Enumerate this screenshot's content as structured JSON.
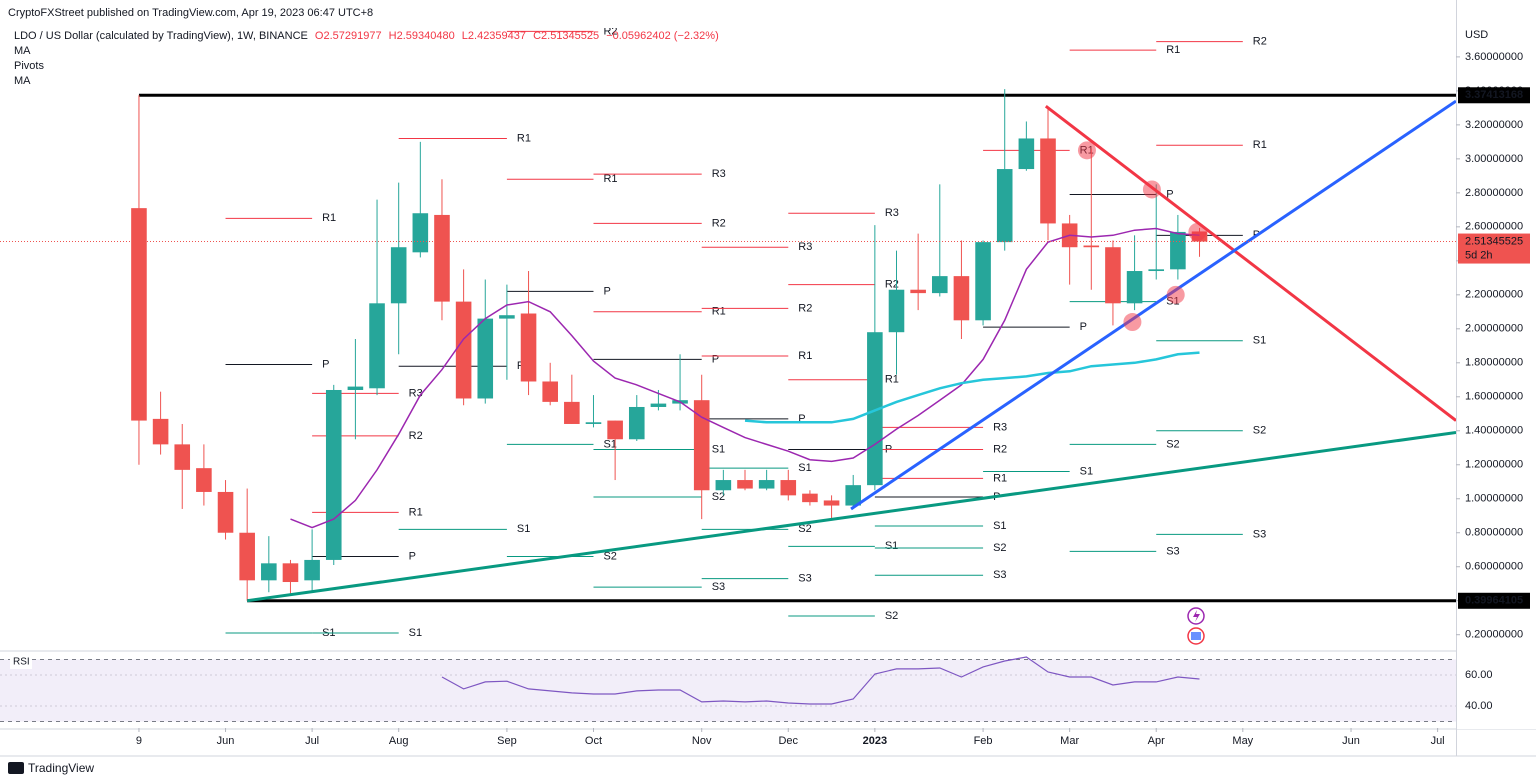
{
  "chart_data": {
    "type": "candlestick",
    "published": "CryptoFXStreet published on TradingView.com, Apr 19, 2023 06:47 UTC+8",
    "symbol": "LDO / US Dollar (calculated by TradingView), 1W, BINANCE",
    "legend_values": [
      "O2.57291977",
      "H2.59340480",
      "L2.42359437",
      "C2.51345525",
      "−0.05962402 (−2.32%)"
    ],
    "indicators": [
      "MA",
      "Pivots",
      "MA"
    ],
    "currency": "USD",
    "up_color": "#26a69a",
    "down_color": "#ef5350",
    "open": [
      2.71,
      1.47,
      1.32,
      1.18,
      1.04,
      0.8,
      0.52,
      0.62,
      0.52,
      0.64,
      1.64,
      1.65,
      2.15,
      2.45,
      2.67,
      2.16,
      1.59,
      2.06,
      2.09,
      1.69,
      1.57,
      1.44,
      1.46,
      1.35,
      1.54,
      1.56,
      1.58,
      1.05,
      1.11,
      1.06,
      1.11,
      1.03,
      0.99,
      0.96,
      1.08,
      1.98,
      2.23,
      2.21,
      2.31,
      2.05,
      2.51,
      2.94,
      3.12,
      2.62,
      2.49,
      2.48,
      2.15,
      2.34,
      2.35,
      2.57291977
    ],
    "high": [
      3.37413168,
      1.63,
      1.44,
      1.32,
      1.11,
      1.06,
      0.78,
      0.64,
      0.82,
      1.67,
      1.94,
      2.76,
      2.86,
      3.1,
      2.88,
      2.35,
      2.29,
      2.26,
      2.34,
      1.8,
      1.73,
      1.61,
      1.46,
      1.61,
      1.64,
      1.85,
      1.73,
      1.17,
      1.17,
      1.17,
      1.17,
      1.05,
      1.02,
      1.14,
      2.61,
      2.46,
      2.56,
      2.85,
      2.52,
      2.52,
      3.41,
      3.22,
      3.3,
      2.67,
      3.06,
      2.52,
      2.55,
      2.85,
      2.67,
      2.5934048
    ],
    "low": [
      1.2,
      1.26,
      0.94,
      0.96,
      0.76,
      0.39964105,
      0.45,
      0.44,
      0.46,
      0.61,
      1.35,
      1.61,
      1.85,
      2.42,
      2.05,
      1.55,
      1.56,
      1.7,
      1.61,
      1.55,
      1.44,
      1.42,
      1.11,
      1.34,
      1.52,
      1.52,
      0.88,
      1.02,
      1.05,
      1.05,
      0.99,
      0.96,
      0.88,
      0.94,
      1.05,
      1.73,
      2.11,
      2.19,
      1.94,
      2.02,
      2.46,
      2.93,
      2.52,
      2.26,
      2.23,
      2.02,
      2.11,
      2.29,
      2.29,
      2.42359437
    ],
    "close": [
      1.46,
      1.32,
      1.17,
      1.04,
      0.8,
      0.52,
      0.62,
      0.51,
      0.64,
      1.64,
      1.66,
      2.15,
      2.48,
      2.68,
      2.16,
      1.59,
      2.06,
      2.08,
      1.69,
      1.57,
      1.44,
      1.45,
      1.35,
      1.54,
      1.56,
      1.58,
      1.05,
      1.11,
      1.06,
      1.11,
      1.02,
      0.98,
      0.96,
      1.08,
      1.98,
      2.23,
      2.21,
      2.31,
      2.05,
      2.51,
      2.94,
      3.12,
      2.62,
      2.48,
      2.48,
      2.15,
      2.34,
      2.35,
      2.57,
      2.51345525
    ],
    "moving_averages": [
      {
        "name": "MA",
        "color": "#9c27b0",
        "values": [
          null,
          null,
          null,
          null,
          null,
          null,
          null,
          0.88,
          0.83,
          0.88,
          0.99,
          1.17,
          1.38,
          1.61,
          1.76,
          1.94,
          2.06,
          2.14,
          2.16,
          2.1,
          1.96,
          1.81,
          1.71,
          1.67,
          1.62,
          1.57,
          1.48,
          1.42,
          1.36,
          1.32,
          1.28,
          1.23,
          1.22,
          1.24,
          1.32,
          1.41,
          1.49,
          1.58,
          1.67,
          1.82,
          2.05,
          2.35,
          2.51,
          2.55,
          2.54,
          2.55,
          2.58,
          2.59,
          2.56,
          2.55
        ]
      },
      {
        "name": "MA",
        "color": "#26c6da",
        "values": [
          null,
          null,
          null,
          null,
          null,
          null,
          null,
          null,
          null,
          null,
          null,
          null,
          null,
          null,
          null,
          null,
          null,
          null,
          null,
          null,
          null,
          null,
          null,
          null,
          null,
          null,
          null,
          null,
          1.46,
          1.45,
          1.45,
          1.45,
          1.45,
          1.47,
          1.52,
          1.57,
          1.61,
          1.65,
          1.68,
          1.7,
          1.71,
          1.72,
          1.74,
          1.75,
          1.78,
          1.79,
          1.8,
          1.82,
          1.85,
          1.86
        ]
      }
    ],
    "xlim": [
      -6.42,
      60.85
    ],
    "xticks": [
      {
        "value": 0,
        "label": "9"
      },
      {
        "value": 4,
        "label": "Jun"
      },
      {
        "value": 8,
        "label": "Jul"
      },
      {
        "value": 12,
        "label": "Aug"
      },
      {
        "value": 17,
        "label": "Sep"
      },
      {
        "value": 21,
        "label": "Oct"
      },
      {
        "value": 26,
        "label": "Nov"
      },
      {
        "value": 30,
        "label": "Dec"
      },
      {
        "value": 34,
        "label": "2023"
      },
      {
        "value": 39,
        "label": "Feb"
      },
      {
        "value": 43,
        "label": "Mar"
      },
      {
        "value": 47,
        "label": "Apr"
      },
      {
        "value": 51,
        "label": "May"
      },
      {
        "value": 56,
        "label": "Jun"
      },
      {
        "value": 60,
        "label": "Jul"
      }
    ],
    "ylim": [
      0.11,
      3.77
    ],
    "yticks": [
      {
        "value": 0.2,
        "label": "0.20000000"
      },
      {
        "value": 0.4,
        "label": "0.40000000"
      },
      {
        "value": 0.6,
        "label": "0.60000000"
      },
      {
        "value": 0.8,
        "label": "0.80000000"
      },
      {
        "value": 1.0,
        "label": "1.00000000"
      },
      {
        "value": 1.2,
        "label": "1.20000000"
      },
      {
        "value": 1.4,
        "label": "1.40000000"
      },
      {
        "value": 1.6,
        "label": "1.60000000"
      },
      {
        "value": 1.8,
        "label": "1.80000000"
      },
      {
        "value": 2.0,
        "label": "2.00000000"
      },
      {
        "value": 2.2,
        "label": "2.20000000"
      },
      {
        "value": 2.4,
        "label": "2.40000000"
      },
      {
        "value": 2.6,
        "label": "2.60000000"
      },
      {
        "value": 2.8,
        "label": "2.80000000"
      },
      {
        "value": 3.0,
        "label": "3.00000000"
      },
      {
        "value": 3.2,
        "label": "3.20000000"
      },
      {
        "value": 3.4,
        "label": "3.40000000"
      },
      {
        "value": 3.6,
        "label": "3.60000000"
      }
    ],
    "levels": [
      {
        "value": 3.37413168,
        "from": 0
      },
      {
        "value": 0.39964105,
        "from": 5
      }
    ],
    "countdown": "5d 2h",
    "pivot_colors": {
      "R": "#f23645",
      "P": "#131722",
      "S": "#089981"
    },
    "pivots": [
      {
        "label": "R1",
        "from": 4,
        "to": 8,
        "value": 2.65
      },
      {
        "label": "P",
        "from": 4,
        "to": 8,
        "value": 1.79
      },
      {
        "label": "S1",
        "from": 4,
        "to": 8,
        "value": 0.21
      },
      {
        "label": "R3",
        "from": 8,
        "to": 12,
        "value": 1.62
      },
      {
        "label": "R2",
        "from": 8,
        "to": 12,
        "value": 1.37
      },
      {
        "label": "R1",
        "from": 8,
        "to": 12,
        "value": 0.92
      },
      {
        "label": "P",
        "from": 8,
        "to": 12,
        "value": 0.66
      },
      {
        "label": "S1",
        "from": 8,
        "to": 12,
        "value": 0.21
      },
      {
        "label": "R1",
        "from": 12,
        "to": 17,
        "value": 3.12
      },
      {
        "label": "P",
        "from": 12,
        "to": 17,
        "value": 1.78
      },
      {
        "label": "S1",
        "from": 12,
        "to": 17,
        "value": 0.82
      },
      {
        "label": "R2",
        "from": 17,
        "to": 21,
        "value": 3.75
      },
      {
        "label": "R1",
        "from": 17,
        "to": 21,
        "value": 2.88
      },
      {
        "label": "P",
        "from": 17,
        "to": 21,
        "value": 2.22
      },
      {
        "label": "S1",
        "from": 17,
        "to": 21,
        "value": 1.32
      },
      {
        "label": "S2",
        "from": 17,
        "to": 21,
        "value": 0.66
      },
      {
        "label": "R3",
        "from": 21,
        "to": 26,
        "value": 2.91
      },
      {
        "label": "R2",
        "from": 21,
        "to": 26,
        "value": 2.62
      },
      {
        "label": "R1",
        "from": 21,
        "to": 26,
        "value": 2.1
      },
      {
        "label": "P",
        "from": 21,
        "to": 26,
        "value": 1.82
      },
      {
        "label": "S1",
        "from": 21,
        "to": 26,
        "value": 1.29
      },
      {
        "label": "S2",
        "from": 21,
        "to": 26,
        "value": 1.01
      },
      {
        "label": "S3",
        "from": 21,
        "to": 26,
        "value": 0.48
      },
      {
        "label": "R3",
        "from": 26,
        "to": 30,
        "value": 2.48
      },
      {
        "label": "R2",
        "from": 26,
        "to": 30,
        "value": 2.12
      },
      {
        "label": "R1",
        "from": 26,
        "to": 30,
        "value": 1.84
      },
      {
        "label": "P",
        "from": 26,
        "to": 30,
        "value": 1.47
      },
      {
        "label": "S1",
        "from": 26,
        "to": 30,
        "value": 1.18
      },
      {
        "label": "S2",
        "from": 26,
        "to": 30,
        "value": 0.82
      },
      {
        "label": "S3",
        "from": 26,
        "to": 30,
        "value": 0.53
      },
      {
        "label": "R3",
        "from": 30,
        "to": 34,
        "value": 2.68
      },
      {
        "label": "R2",
        "from": 30,
        "to": 34,
        "value": 2.26
      },
      {
        "label": "R1",
        "from": 30,
        "to": 34,
        "value": 1.7
      },
      {
        "label": "P",
        "from": 30,
        "to": 34,
        "value": 1.29
      },
      {
        "label": "S1",
        "from": 30,
        "to": 34,
        "value": 0.72
      },
      {
        "label": "S2",
        "from": 30,
        "to": 34,
        "value": 0.31
      },
      {
        "label": "R3",
        "from": 34,
        "to": 39,
        "value": 1.42
      },
      {
        "label": "R2",
        "from": 34,
        "to": 39,
        "value": 1.29
      },
      {
        "label": "R1",
        "from": 34,
        "to": 39,
        "value": 1.12
      },
      {
        "label": "P",
        "from": 34,
        "to": 39,
        "value": 1.01
      },
      {
        "label": "S1",
        "from": 34,
        "to": 39,
        "value": 0.84
      },
      {
        "label": "S2",
        "from": 34,
        "to": 39,
        "value": 0.71
      },
      {
        "label": "S3",
        "from": 34,
        "to": 39,
        "value": 0.55
      },
      {
        "label": "R1",
        "from": 39,
        "to": 43,
        "value": 3.05
      },
      {
        "label": "P",
        "from": 39,
        "to": 43,
        "value": 2.01
      },
      {
        "label": "S1",
        "from": 39,
        "to": 43,
        "value": 1.16
      },
      {
        "label": "R1",
        "from": 43,
        "to": 47,
        "value": 3.64
      },
      {
        "label": "P",
        "from": 43,
        "to": 47,
        "value": 2.79
      },
      {
        "label": "S1",
        "from": 43,
        "to": 47,
        "value": 2.16
      },
      {
        "label": "S2",
        "from": 43,
        "to": 47,
        "value": 1.32
      },
      {
        "label": "S3",
        "from": 43,
        "to": 47,
        "value": 0.69
      },
      {
        "label": "R2",
        "from": 47,
        "to": 51,
        "value": 3.69
      },
      {
        "label": "R1",
        "from": 47,
        "to": 51,
        "value": 3.08
      },
      {
        "label": "P",
        "from": 47,
        "to": 51,
        "value": 2.55
      },
      {
        "label": "S1",
        "from": 47,
        "to": 51,
        "value": 1.93
      },
      {
        "label": "S2",
        "from": 47,
        "to": 51,
        "value": 1.4
      },
      {
        "label": "S3",
        "from": 47,
        "to": 51,
        "value": 0.79
      }
    ],
    "trendlines": [
      {
        "color": "#f23645",
        "from": [
          41.9,
          3.31
        ],
        "to": [
          60.85,
          1.46
        ]
      },
      {
        "color": "#2962ff",
        "from": [
          32.9,
          0.94
        ],
        "to": [
          60.85,
          3.34
        ]
      },
      {
        "color": "#089981",
        "from": [
          5,
          0.4
        ],
        "to": [
          60.85,
          1.39
        ]
      }
    ],
    "highlights": [
      {
        "x": 43.8,
        "y": 3.05
      },
      {
        "x": 46.8,
        "y": 2.82
      },
      {
        "x": 48.9,
        "y": 2.57
      },
      {
        "x": 47.9,
        "y": 2.2
      },
      {
        "x": 45.9,
        "y": 2.04
      }
    ],
    "rsi": {
      "name": "RSI",
      "color": "#7e57c2",
      "values": [
        null,
        null,
        null,
        null,
        null,
        null,
        null,
        null,
        null,
        null,
        null,
        null,
        null,
        null,
        58.7,
        51,
        55.5,
        56,
        51,
        49.7,
        48.4,
        47.7,
        47.7,
        49.7,
        50.3,
        50.3,
        42.6,
        43.2,
        42.6,
        43.2,
        41.9,
        41.3,
        41.3,
        44.5,
        60.6,
        63.9,
        63.9,
        64.5,
        58.7,
        65.2,
        69,
        71.6,
        61.9,
        58.7,
        58.7,
        53.5,
        55.5,
        55.5,
        58.7,
        57.4
      ],
      "ylim": [
        25.8,
        74.8
      ],
      "yticks": [
        {
          "value": 40,
          "label": "40.00"
        },
        {
          "value": 60,
          "label": "60.00"
        }
      ],
      "band": [
        30,
        70
      ]
    },
    "brand": "TradingView"
  }
}
